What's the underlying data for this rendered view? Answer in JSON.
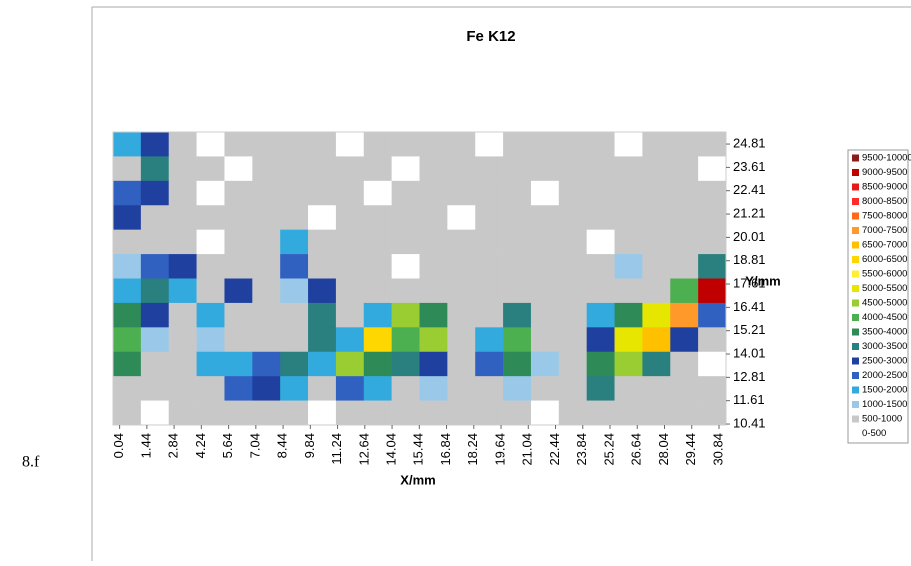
{
  "figure_label": "8.f",
  "chart_data": {
    "type": "heatmap",
    "title": "Fe K12",
    "x_label": "X/mm",
    "y_label": "Y/mm",
    "xlim": [
      -0.3,
      31.2
    ],
    "ylim": [
      10.36,
      25.43
    ],
    "xticks": [
      0.04,
      1.44,
      2.84,
      4.24,
      5.64,
      7.04,
      8.44,
      9.84,
      11.24,
      12.64,
      14.04,
      15.44,
      16.84,
      18.24,
      19.64,
      21.04,
      22.44,
      23.84,
      25.24,
      26.64,
      28.04,
      29.44,
      30.84
    ],
    "yticks": [
      10.41,
      11.61,
      12.81,
      14.01,
      15.21,
      16.41,
      17.61,
      18.81,
      20.01,
      21.21,
      22.41,
      23.61,
      24.81
    ],
    "legend": [
      {
        "name": "9500-10000",
        "color": "#8b1a1a"
      },
      {
        "name": "9000-9500",
        "color": "#c00000"
      },
      {
        "name": "8500-9000",
        "color": "#e41a1c"
      },
      {
        "name": "8000-8500",
        "color": "#ff2a2a"
      },
      {
        "name": "7500-8000",
        "color": "#ff6a1a"
      },
      {
        "name": "7000-7500",
        "color": "#ff9a2a"
      },
      {
        "name": "6500-7000",
        "color": "#ffc000"
      },
      {
        "name": "6000-6500",
        "color": "#ffd700"
      },
      {
        "name": "5500-6000",
        "color": "#ffee33"
      },
      {
        "name": "5000-5500",
        "color": "#e6e600"
      },
      {
        "name": "4500-5000",
        "color": "#9acd32"
      },
      {
        "name": "4000-4500",
        "color": "#4caf50"
      },
      {
        "name": "3500-4000",
        "color": "#2e8b57"
      },
      {
        "name": "3000-3500",
        "color": "#2a7f7f"
      },
      {
        "name": "2500-3000",
        "color": "#2040a0"
      },
      {
        "name": "2000-2500",
        "color": "#3060c0"
      },
      {
        "name": "1500-2000",
        "color": "#33aadd"
      },
      {
        "name": "1000-1500",
        "color": "#99c8e8"
      },
      {
        "name": "500-1000",
        "color": "#c8c8c8"
      },
      {
        "name": "0-500",
        "color": "#ffffff"
      }
    ],
    "z": [
      [
        1500,
        2500,
        700,
        300,
        700,
        700,
        700,
        700,
        300,
        700,
        700,
        700,
        700,
        300,
        700,
        700,
        700,
        700,
        300,
        700,
        700,
        700
      ],
      [
        700,
        3000,
        700,
        700,
        300,
        700,
        700,
        700,
        700,
        700,
        300,
        700,
        700,
        700,
        700,
        700,
        700,
        700,
        700,
        700,
        700,
        300
      ],
      [
        2000,
        2500,
        700,
        300,
        700,
        700,
        700,
        700,
        700,
        300,
        700,
        700,
        700,
        700,
        700,
        300,
        700,
        700,
        700,
        700,
        700,
        700
      ],
      [
        2500,
        700,
        700,
        700,
        700,
        700,
        700,
        300,
        700,
        700,
        700,
        700,
        300,
        700,
        700,
        700,
        700,
        700,
        700,
        700,
        700,
        700
      ],
      [
        700,
        700,
        700,
        300,
        700,
        700,
        1500,
        700,
        700,
        700,
        700,
        700,
        700,
        700,
        700,
        700,
        700,
        300,
        700,
        700,
        700,
        700
      ],
      [
        1200,
        2000,
        2500,
        700,
        700,
        700,
        2000,
        700,
        700,
        700,
        300,
        700,
        700,
        700,
        700,
        700,
        700,
        700,
        1200,
        700,
        700,
        3000
      ],
      [
        1500,
        3000,
        1500,
        700,
        2500,
        700,
        1200,
        2500,
        700,
        700,
        700,
        700,
        700,
        700,
        700,
        700,
        700,
        700,
        700,
        700,
        4000,
        9000
      ],
      [
        3500,
        2500,
        700,
        1500,
        700,
        700,
        700,
        3000,
        700,
        1500,
        4500,
        3500,
        700,
        700,
        3000,
        700,
        700,
        1500,
        3500,
        5000,
        7000,
        2000
      ],
      [
        4000,
        1200,
        700,
        1200,
        700,
        700,
        700,
        3000,
        1500,
        6000,
        4000,
        4500,
        700,
        1500,
        4000,
        700,
        700,
        2500,
        5000,
        6500,
        2500,
        700
      ],
      [
        3500,
        700,
        700,
        1500,
        1500,
        2000,
        3000,
        1500,
        4500,
        3500,
        3000,
        2500,
        700,
        2000,
        3500,
        1200,
        700,
        3500,
        4500,
        3000,
        700,
        300
      ],
      [
        700,
        700,
        700,
        700,
        2000,
        2500,
        1500,
        700,
        2000,
        1500,
        700,
        1200,
        700,
        700,
        1200,
        700,
        700,
        3000,
        700,
        700,
        700,
        700
      ],
      [
        700,
        300,
        700,
        700,
        700,
        700,
        700,
        300,
        700,
        700,
        700,
        700,
        700,
        700,
        700,
        300,
        700,
        700,
        700,
        700,
        700,
        700
      ]
    ]
  }
}
